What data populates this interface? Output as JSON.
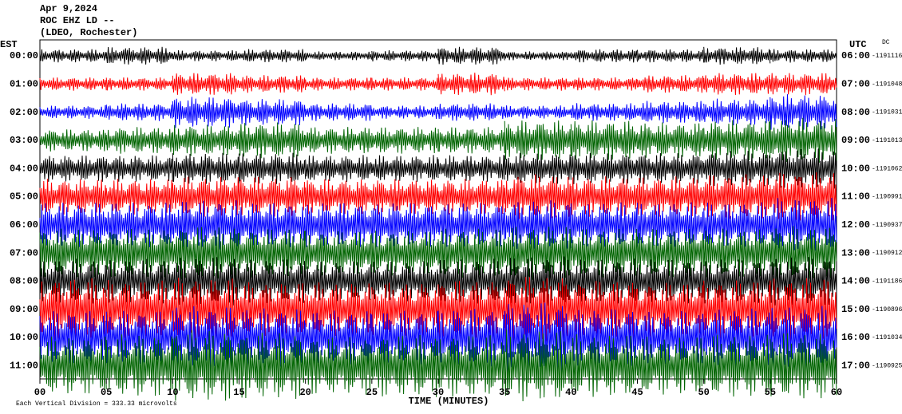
{
  "chart_data": {
    "type": "helicorder",
    "title": "Apr 9,2024",
    "subtitle": "ROC EHZ LD --",
    "station": "(LDEO, Rochester)",
    "left_axis_label": "EST",
    "right_axis_label": "UTC",
    "dc_label": "DC",
    "xlabel": "TIME (MINUTES)",
    "footnote": "Each Vertical Division = 333.33 microvolts",
    "xlim": [
      0,
      60
    ],
    "xticks": [
      {
        "value": 0,
        "label": "00"
      },
      {
        "value": 5,
        "label": "05"
      },
      10,
      15,
      20,
      25,
      30,
      35,
      40,
      45,
      50,
      55,
      60
    ],
    "rows": [
      {
        "est": "00:00",
        "utc": "06:00",
        "dc": -1191116,
        "color": "#000000",
        "amplitude": [
          0.3,
          0.4,
          0.25,
          0.3,
          0.2,
          0.25,
          0.4,
          0.2,
          0.3,
          0.3,
          0.4,
          0.3
        ]
      },
      {
        "est": "01:00",
        "utc": "07:00",
        "dc": -1191048,
        "color": "#ff0000",
        "amplitude": [
          0.3,
          0.3,
          0.5,
          0.4,
          0.3,
          0.3,
          0.5,
          0.3,
          0.3,
          0.4,
          0.5,
          0.5
        ]
      },
      {
        "est": "02:00",
        "utc": "08:00",
        "dc": -1191031,
        "color": "#0000ff",
        "amplitude": [
          0.3,
          0.4,
          0.7,
          0.6,
          0.4,
          0.3,
          0.4,
          0.3,
          0.4,
          0.5,
          0.6,
          0.8
        ]
      },
      {
        "est": "03:00",
        "utc": "09:00",
        "dc": -1191013,
        "color": "#006400",
        "amplitude": [
          0.5,
          0.6,
          0.7,
          0.8,
          0.6,
          0.6,
          0.6,
          0.9,
          0.9,
          0.8,
          0.9,
          1.0
        ]
      },
      {
        "est": "04:00",
        "utc": "10:00",
        "dc": -1191062,
        "color": "#000000",
        "amplitude": [
          0.6,
          0.6,
          0.7,
          0.7,
          0.6,
          0.6,
          0.6,
          0.7,
          0.7,
          0.7,
          0.8,
          0.9
        ]
      },
      {
        "est": "05:00",
        "utc": "11:00",
        "dc": -1190991,
        "color": "#ff0000",
        "amplitude": [
          0.8,
          0.8,
          0.9,
          0.9,
          0.8,
          0.8,
          0.8,
          1.0,
          0.9,
          0.9,
          1.0,
          1.1
        ]
      },
      {
        "est": "06:00",
        "utc": "12:00",
        "dc": -1190937,
        "color": "#0000ff",
        "amplitude": [
          1.0,
          1.0,
          1.1,
          1.0,
          1.0,
          1.0,
          1.0,
          1.1,
          1.0,
          1.0,
          1.0,
          1.2
        ]
      },
      {
        "est": "07:00",
        "utc": "13:00",
        "dc": -1190912,
        "color": "#006400",
        "amplitude": [
          1.1,
          1.1,
          1.2,
          1.1,
          1.0,
          1.0,
          1.1,
          1.2,
          1.1,
          1.1,
          1.1,
          1.2
        ]
      },
      {
        "est": "08:00",
        "utc": "14:00",
        "dc": -1191186,
        "color": "#000000",
        "amplitude": [
          1.0,
          1.0,
          1.1,
          1.0,
          0.9,
          0.9,
          1.0,
          1.1,
          1.0,
          1.0,
          1.0,
          1.1
        ]
      },
      {
        "est": "09:00",
        "utc": "15:00",
        "dc": -1190896,
        "color": "#ff0000",
        "amplitude": [
          1.4,
          1.3,
          1.4,
          1.2,
          1.2,
          1.2,
          1.3,
          1.5,
          1.3,
          1.2,
          1.3,
          1.4
        ]
      },
      {
        "est": "10:00",
        "utc": "16:00",
        "dc": -1191034,
        "color": "#0000ff",
        "amplitude": [
          1.2,
          1.2,
          1.4,
          1.3,
          1.2,
          1.2,
          1.3,
          1.6,
          1.3,
          1.2,
          1.3,
          1.4
        ]
      },
      {
        "est": "11:00",
        "utc": "17:00",
        "dc": -1190925,
        "color": "#006400",
        "amplitude": [
          1.3,
          1.4,
          1.6,
          1.5,
          1.3,
          1.4,
          1.4,
          1.6,
          1.4,
          1.3,
          1.4,
          1.5
        ]
      }
    ]
  }
}
